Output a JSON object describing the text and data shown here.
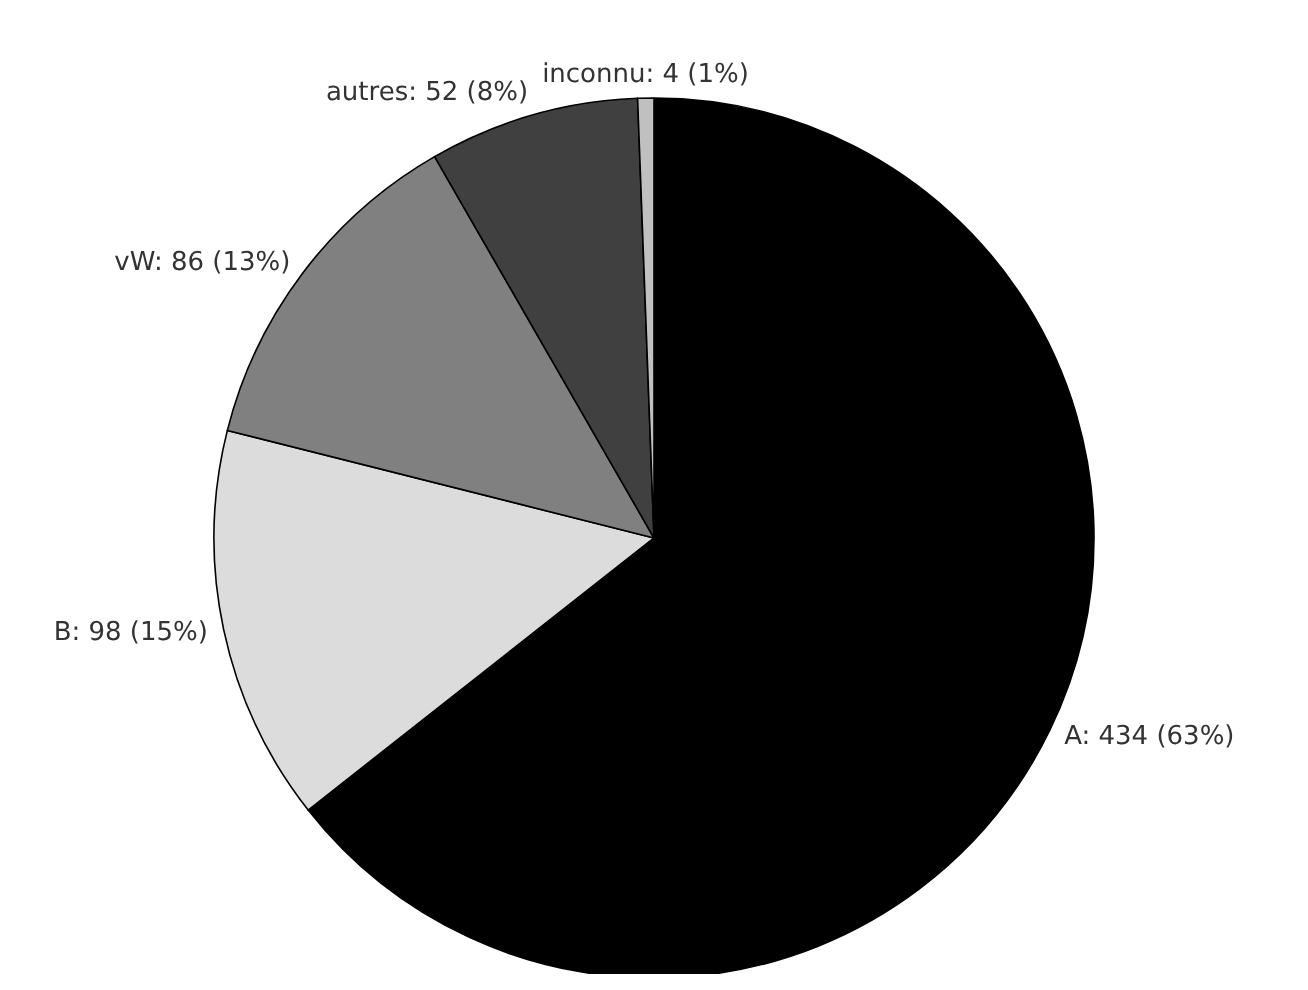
{
  "chart_data": {
    "type": "pie",
    "categories": [
      "A",
      "B",
      "vW",
      "autres",
      "inconnu"
    ],
    "values": [
      434,
      98,
      86,
      52,
      4
    ],
    "value_labels": [
      "434 (63%)",
      "98 (15%)",
      "86 (13%)",
      "52 (8%)",
      "4 (1%)"
    ],
    "colors": [
      "#000000",
      "#dcdcdc",
      "#808080",
      "#404040",
      "#c0c0c0"
    ],
    "legend": false
  }
}
